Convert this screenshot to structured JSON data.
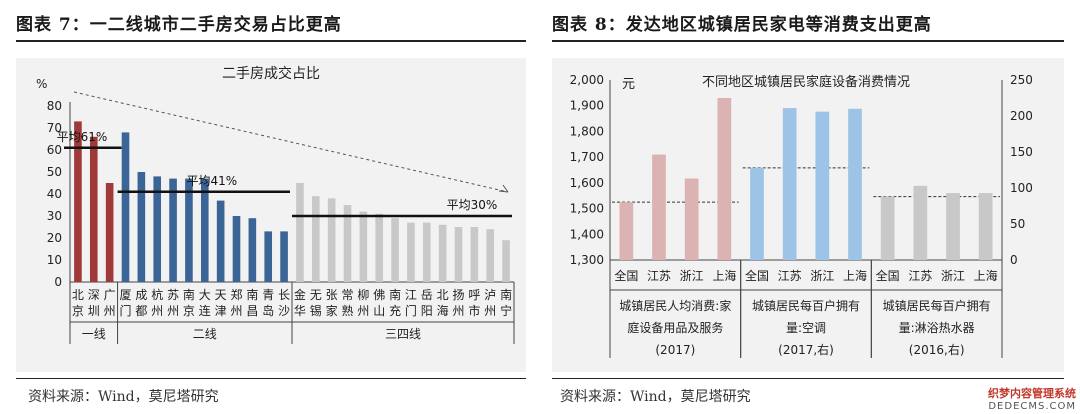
{
  "left": {
    "heading": "图表 7：一二线城市二手房交易占比更高",
    "source": "资料来源：Wind，莫尼塔研究"
  },
  "right": {
    "heading": "图表 8：发达地区城镇居民家电等消费支出更高",
    "source": "资料来源：Wind，莫尼塔研究"
  },
  "watermark": {
    "line1": "织梦内容管理系统",
    "line2": "DEDECMS.COM"
  },
  "colors": {
    "red": "#a0393a",
    "blue": "#3b6497",
    "gray": "#c8c8c8",
    "pink": "#dbb3b3",
    "lightblue": "#9dc3e6"
  },
  "chart_data": [
    {
      "type": "bar",
      "title": "二手房成交占比",
      "ylabel": "%",
      "ylim": [
        0,
        80
      ],
      "yticks": [
        0,
        10,
        20,
        30,
        40,
        50,
        60,
        70,
        80
      ],
      "categories": [
        "北京",
        "深圳",
        "广州",
        "厦门",
        "成都",
        "杭州",
        "苏州",
        "南京",
        "大连",
        "天津",
        "郑州",
        "南昌",
        "青岛",
        "长沙",
        "金华",
        "无锡",
        "张家",
        "常熟",
        "柳州",
        "佛山",
        "南充",
        "江门",
        "岳阳",
        "北海",
        "扬州",
        "呼市",
        "泸州",
        "南宁"
      ],
      "values": [
        73,
        66,
        45,
        68,
        50,
        48,
        47,
        47,
        47,
        37,
        30,
        29,
        23,
        23,
        45,
        39,
        38,
        35,
        32,
        31,
        29,
        27,
        27,
        26,
        25,
        25,
        24,
        19
      ],
      "groups": [
        {
          "label": "一线",
          "start": 0,
          "end": 2,
          "color": "red"
        },
        {
          "label": "二线",
          "start": 3,
          "end": 13,
          "color": "blue"
        },
        {
          "label": "三四线",
          "start": 14,
          "end": 27,
          "color": "gray"
        }
      ],
      "annotations": [
        {
          "text": "平均61%",
          "value": 61,
          "start": 0,
          "end": 2
        },
        {
          "text": "平均41%",
          "value": 41,
          "start": 3,
          "end": 13
        },
        {
          "text": "平均30%",
          "value": 30,
          "start": 14,
          "end": 27
        }
      ]
    },
    {
      "type": "bar",
      "title": "不同地区城镇居民家庭设备消费情况",
      "ylabel": "元",
      "ylim": [
        1300,
        2000
      ],
      "yticks": [
        1300,
        1400,
        1500,
        1600,
        1700,
        1800,
        1900,
        2000
      ],
      "y2lim": [
        0,
        250
      ],
      "y2ticks": [
        0,
        50,
        100,
        150,
        200,
        250
      ],
      "groups": [
        {
          "label_lines": [
            "城镇居民人均消费:家",
            "庭设备用品及服务",
            "(2017)"
          ],
          "axis": "left",
          "color": "pink",
          "categories": [
            "全国",
            "江苏",
            "浙江",
            "上海"
          ],
          "values": [
            1525,
            1710,
            1617,
            1930
          ],
          "average": 1525
        },
        {
          "label_lines": [
            "城镇居民每百户拥有",
            "量:空调",
            "(2017,右)"
          ],
          "axis": "right",
          "color": "lightblue",
          "categories": [
            "全国",
            "江苏",
            "浙江",
            "上海"
          ],
          "values": [
            128,
            211,
            206,
            210
          ],
          "average": 128
        },
        {
          "label_lines": [
            "城镇居民每百户拥有",
            "量:淋浴热水器",
            "(2016,右)"
          ],
          "axis": "right",
          "color": "gray",
          "categories": [
            "全国",
            "江苏",
            "浙江",
            "上海"
          ],
          "values": [
            88,
            103,
            93,
            93
          ],
          "average": 88
        }
      ]
    }
  ]
}
